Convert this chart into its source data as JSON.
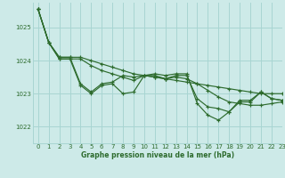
{
  "title": "Graphe pression niveau de la mer (hPa)",
  "bg_color": "#cdeae8",
  "grid_color": "#a8d5d2",
  "line_color": "#2d6b2d",
  "xlim": [
    -0.5,
    23
  ],
  "ylim": [
    1021.5,
    1025.75
  ],
  "yticks": [
    1022,
    1023,
    1024,
    1025
  ],
  "xticks": [
    0,
    1,
    2,
    3,
    4,
    5,
    6,
    7,
    8,
    9,
    10,
    11,
    12,
    13,
    14,
    15,
    16,
    17,
    18,
    19,
    20,
    21,
    22,
    23
  ],
  "series": [
    [
      1025.55,
      1024.55,
      1024.05,
      1024.05,
      1023.25,
      1023.0,
      1023.25,
      1023.3,
      1023.0,
      1023.05,
      1023.55,
      1023.55,
      1023.45,
      1023.55,
      1023.55,
      1022.85,
      1022.6,
      1022.55,
      1022.45,
      1022.75,
      1022.75,
      1023.05,
      1022.85,
      1022.8
    ],
    [
      1025.55,
      1024.55,
      1024.05,
      1024.05,
      1024.05,
      1023.85,
      1023.7,
      1023.6,
      1023.5,
      1023.4,
      1023.55,
      1023.5,
      1023.45,
      1023.5,
      1023.45,
      1023.3,
      1023.1,
      1022.9,
      1022.75,
      1022.7,
      1022.65,
      1022.65,
      1022.7,
      1022.75
    ],
    [
      1025.55,
      1024.55,
      1024.1,
      1024.1,
      1024.1,
      1024.0,
      1023.9,
      1023.8,
      1023.7,
      1023.6,
      1023.55,
      1023.5,
      1023.45,
      1023.4,
      1023.35,
      1023.3,
      1023.25,
      1023.2,
      1023.15,
      1023.1,
      1023.05,
      1023.0,
      1023.0,
      1023.0
    ],
    [
      1025.55,
      1024.55,
      1024.1,
      1024.1,
      1023.3,
      1023.05,
      1023.3,
      1023.35,
      1023.55,
      1023.5,
      1023.55,
      1023.6,
      1023.55,
      1023.6,
      1023.6,
      1022.7,
      1022.35,
      1022.2,
      1022.45,
      1022.8,
      1022.8,
      1023.05,
      1022.85,
      1022.8
    ]
  ]
}
